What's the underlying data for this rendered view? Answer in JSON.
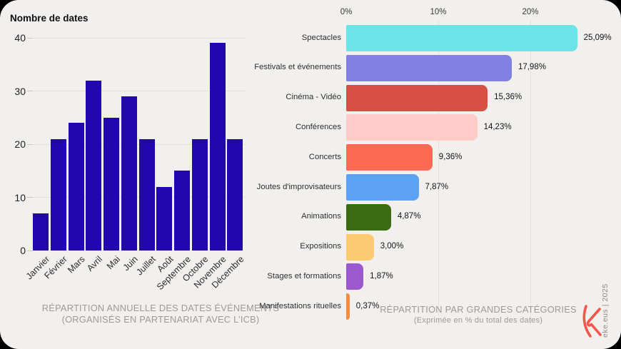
{
  "card": {
    "background": "#f1f0ee",
    "outer_background": "#000000",
    "grid_color": "#e4e2e0",
    "caption_color": "#9c9a98"
  },
  "left_chart": {
    "title": "Nombre de dates",
    "caption_line1": "RÉPARTITION ANNUELLE DES DATES ÉVÉNEMENTS",
    "caption_line2": "(ORGANISÉS EN PARTENARIAT AVEC L’ICB)"
  },
  "right_chart": {
    "caption_line1": "RÉPARTITION PAR GRANDES CATÉGORIES",
    "caption_line2": "(Exprimée en % du total des dates)"
  },
  "branding": {
    "credit_vertical_text": "eke.eus | 2025",
    "logo_name": "eke-k-logo",
    "logo_color": "#f2574a"
  },
  "chart_data": [
    {
      "type": "bar",
      "orientation": "vertical",
      "title": "Nombre de dates",
      "categories": [
        "Janvier",
        "Février",
        "Mars",
        "Avril",
        "Mai",
        "Juin",
        "Juillet",
        "Août",
        "Septembre",
        "Octobre",
        "Novembre",
        "Décembre"
      ],
      "values": [
        7,
        21,
        24,
        32,
        25,
        29,
        21,
        12,
        15,
        21,
        39,
        21
      ],
      "ylabel": "Nombre de dates",
      "xlabel": "",
      "ylim": [
        0,
        40
      ],
      "yticks": [
        0,
        10,
        20,
        30,
        40
      ],
      "grid": "horizontal",
      "bar_color": "#2207af",
      "caption": [
        "RÉPARTITION ANNUELLE DES DATES ÉVÉNEMENTS",
        "(ORGANISÉS EN PARTENARIAT AVEC L’ICB)"
      ]
    },
    {
      "type": "bar",
      "orientation": "horizontal",
      "title": "RÉPARTITION PAR GRANDES CATÉGORIES",
      "subtitle": "(Exprimée en % du total des dates)",
      "categories": [
        "Spectacles",
        "Festivals et événements",
        "Cinéma - Vidéo",
        "Conférences",
        "Concerts",
        "Joutes d'improvisateurs",
        "Animations",
        "Expositions",
        "Stages et formations",
        "Manifestations rituelles"
      ],
      "values": [
        25.09,
        17.98,
        15.36,
        14.23,
        9.36,
        7.87,
        4.87,
        3.0,
        1.87,
        0.37
      ],
      "value_labels": [
        "25,09%",
        "17,98%",
        "15,36%",
        "14,23%",
        "9,36%",
        "7,87%",
        "4,87%",
        "3,00%",
        "1,87%",
        "0,37%"
      ],
      "colors": [
        "#6ce3e6",
        "#8280e2",
        "#d94f43",
        "#ffcbc8",
        "#fc6a54",
        "#5ba2f2",
        "#3c6b13",
        "#fcca72",
        "#9c59cd",
        "#f28c45"
      ],
      "xlim": [
        0,
        29.5
      ],
      "xticks": [
        "0%",
        "10%",
        "20%"
      ],
      "xtick_values": [
        0,
        10,
        20
      ],
      "grid": "vertical",
      "xlabel": "% du total des dates",
      "ylabel": ""
    }
  ]
}
